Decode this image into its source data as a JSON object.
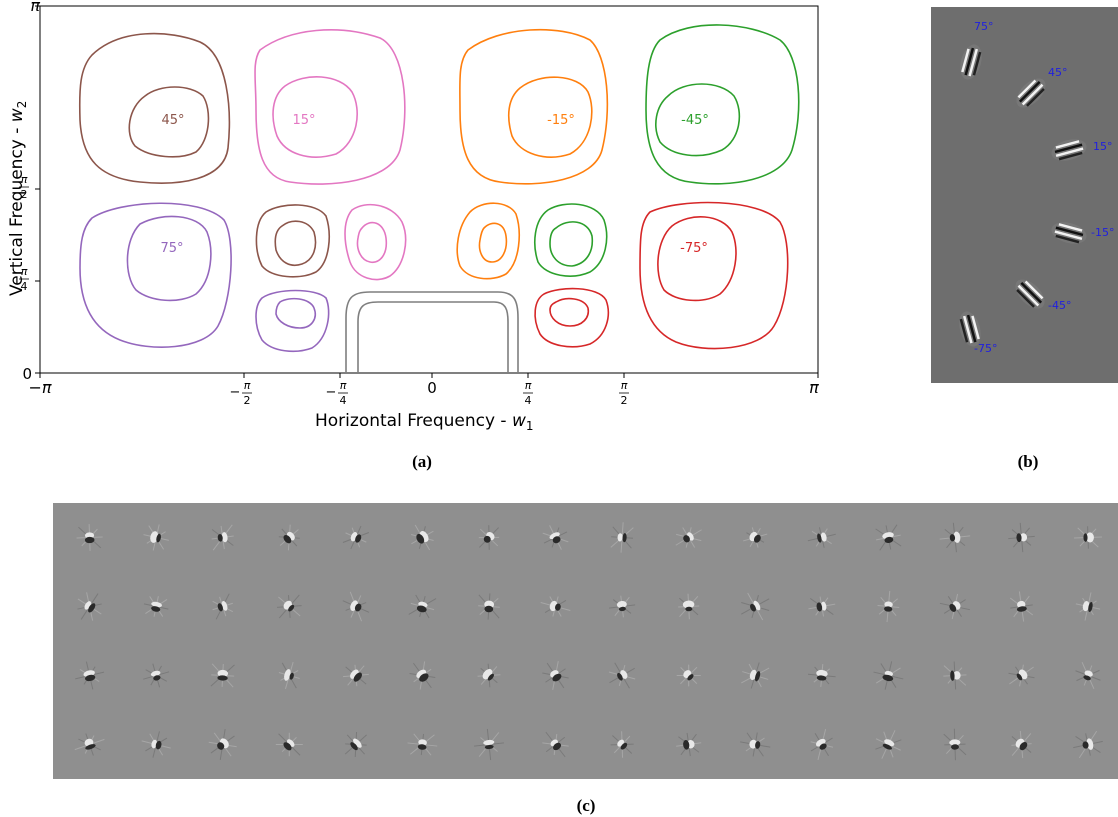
{
  "panel_a": {
    "caption": "(a)",
    "xlabel_text": "Horizontal Frequency - ",
    "xlabel_var": "w",
    "xlabel_sub": "1",
    "ylabel_text": "Vertical Frequency - ",
    "ylabel_var": "w",
    "ylabel_sub": "2",
    "y_top_tick": "π",
    "y_zero_tick": "0",
    "x_ticks": {
      "neg_pi": "−π",
      "neg_pi_2_sign": "−",
      "neg_pi_2_num": "π",
      "neg_pi_2_den": "2",
      "neg_pi_4_sign": "−",
      "neg_pi_4_num": "π",
      "neg_pi_4_den": "4",
      "zero": "0",
      "pi_4_num": "π",
      "pi_4_den": "4",
      "pi_2_num": "π",
      "pi_2_den": "2",
      "pi": "π"
    },
    "y_ticks": {
      "pi_2_num": "π",
      "pi_2_den": "2",
      "pi_4_num": "π",
      "pi_4_den": "4"
    },
    "orientation_labels": {
      "deg45": "45°",
      "deg15": "15°",
      "neg15": "-15°",
      "neg45": "-45°",
      "deg75": "75°",
      "neg75": "-75°"
    },
    "colors": {
      "brown": "#8c564b",
      "pink": "#e377c2",
      "orange": "#ff7f0e",
      "green": "#2ca02c",
      "purple": "#9467bd",
      "red": "#d62728",
      "gray": "#7f7f7f"
    }
  },
  "panel_b": {
    "caption": "(b)",
    "labels": {
      "deg75": "75°",
      "deg45": "45°",
      "deg15": "15°",
      "neg15": "-15°",
      "neg45": "-45°",
      "neg75": "-75°"
    },
    "label_color": "#1f1fe0",
    "background": "#6e6e6e"
  },
  "panel_c": {
    "caption": "(c)",
    "grid_rows": 4,
    "grid_cols": 16,
    "background": "#8f8f8f"
  }
}
